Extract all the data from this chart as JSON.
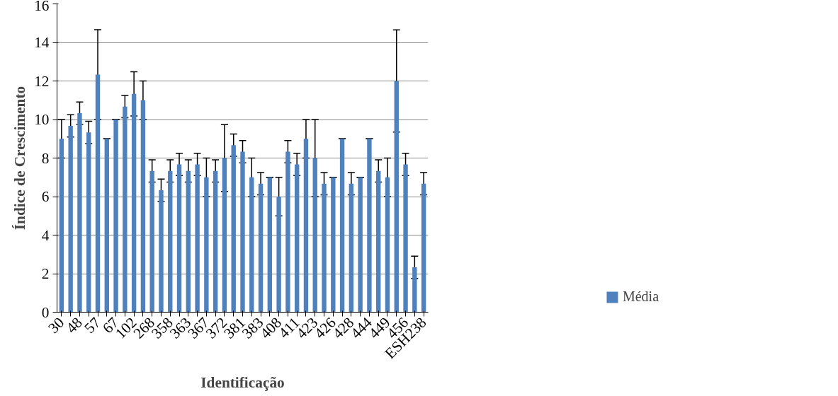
{
  "chart_data": {
    "type": "bar",
    "xlabel": "Identificação",
    "ylabel": "Índice de Crescimento",
    "categories": [
      "30",
      null,
      "48",
      null,
      "57",
      null,
      "67",
      null,
      "102",
      null,
      "268",
      null,
      "358",
      null,
      "363",
      null,
      "367",
      null,
      "372",
      null,
      "381",
      null,
      "383",
      null,
      "408",
      null,
      "411",
      null,
      "423",
      null,
      "426",
      null,
      "428",
      null,
      "444",
      null,
      "449",
      null,
      "456",
      null,
      "ESH238"
    ],
    "series": [
      {
        "name": "Média",
        "color": "#4f81bd",
        "values": [
          9,
          9.67,
          10.33,
          9.33,
          12.33,
          9,
          10,
          10.67,
          11.33,
          11,
          7.33,
          6.33,
          7.33,
          7.67,
          7.33,
          7.67,
          7,
          7.33,
          8,
          8.67,
          8.33,
          7,
          6.67,
          7,
          6,
          8.33,
          7.67,
          9,
          8,
          6.67,
          7,
          9,
          6.67,
          7,
          9,
          7.33,
          7,
          12,
          7.67,
          2.33,
          6.67
        ],
        "errors": [
          1,
          0.58,
          0.58,
          0.58,
          2.33,
          0,
          0,
          0.58,
          1.15,
          1,
          0.58,
          0.58,
          0.58,
          0.58,
          0.58,
          0.58,
          1,
          0.58,
          1.73,
          0.58,
          0.58,
          1,
          0.58,
          0,
          1,
          0.58,
          0.58,
          1,
          2,
          0.58,
          0,
          0,
          0.58,
          0,
          0,
          0.58,
          1,
          2.65,
          0.58,
          0.58,
          0.58
        ]
      }
    ],
    "ylim": [
      0,
      16
    ],
    "yticks": [
      0,
      2,
      4,
      6,
      8,
      10,
      12,
      14,
      16
    ],
    "grid": "y",
    "legend": "right"
  }
}
